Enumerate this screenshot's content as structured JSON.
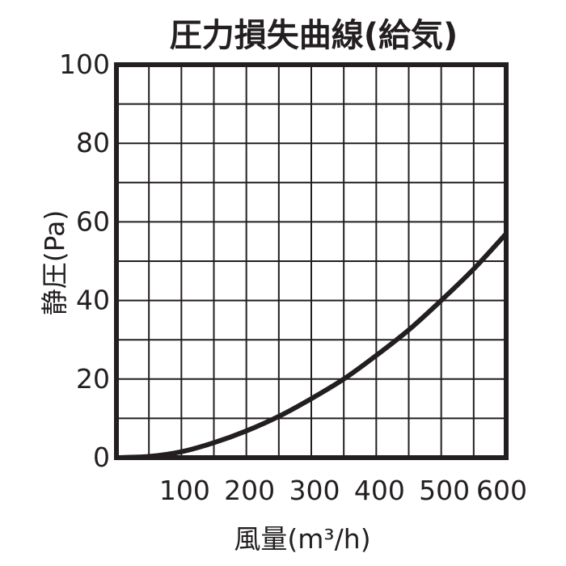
{
  "chart_data": {
    "type": "line",
    "title": "圧力損失曲線(給気)",
    "xlabel": "風量(m³/h)",
    "ylabel": "静圧(Pa)",
    "xlim": [
      0,
      600
    ],
    "ylim": [
      0,
      100
    ],
    "x_ticks": [
      "100",
      "200",
      "300",
      "400",
      "500",
      "600"
    ],
    "y_ticks": [
      "0",
      "20",
      "40",
      "60",
      "80",
      "100"
    ],
    "grid": true,
    "colors": {
      "line": "#231f20",
      "grid": "#231f20",
      "background": "#ffffff"
    },
    "series": [
      {
        "x": [
          0,
          50,
          100,
          150,
          200,
          250,
          300,
          350,
          400,
          450,
          500,
          550,
          600
        ],
        "values": [
          0,
          0.3,
          1.5,
          3.8,
          6.8,
          10.5,
          15,
          20,
          26,
          32.5,
          40,
          48,
          57
        ]
      }
    ]
  }
}
